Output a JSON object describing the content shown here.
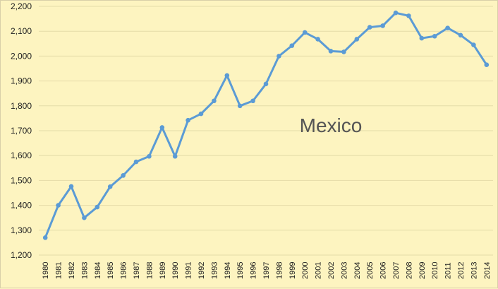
{
  "chart_data": {
    "type": "line",
    "title": "",
    "annotation": "Mexico",
    "xlabel": "",
    "ylabel": "",
    "ylim": [
      1200,
      2200
    ],
    "y_ticks": [
      "1,200",
      "1,300",
      "1,400",
      "1,500",
      "1,600",
      "1,700",
      "1,800",
      "1,900",
      "2,000",
      "2,100",
      "2,200"
    ],
    "grid": true,
    "legend": "none",
    "x": [
      "1980",
      "1981",
      "1982",
      "1983",
      "1984",
      "1985",
      "1986",
      "1987",
      "1988",
      "1989",
      "1990",
      "1991",
      "1992",
      "1993",
      "1994",
      "1995",
      "1996",
      "1997",
      "1998",
      "1999",
      "2000",
      "2001",
      "2002",
      "2003",
      "2004",
      "2005",
      "2006",
      "2007",
      "2008",
      "2009",
      "2010",
      "2011",
      "2012",
      "2013",
      "2014"
    ],
    "series": [
      {
        "values": [
          1270,
          1400,
          1476,
          1350,
          1393,
          1475,
          1520,
          1575,
          1597,
          1713,
          1597,
          1742,
          1768,
          1820,
          1922,
          1800,
          1820,
          1888,
          2000,
          2042,
          2095,
          2068,
          2020,
          2017,
          2068,
          2116,
          2122,
          2174,
          2162,
          2072,
          2080,
          2113,
          2084,
          2045,
          1965
        ]
      }
    ],
    "colors": {
      "line": "#5b9bd5",
      "background": "#fdf4c0",
      "grid": "#e4dba8"
    }
  }
}
